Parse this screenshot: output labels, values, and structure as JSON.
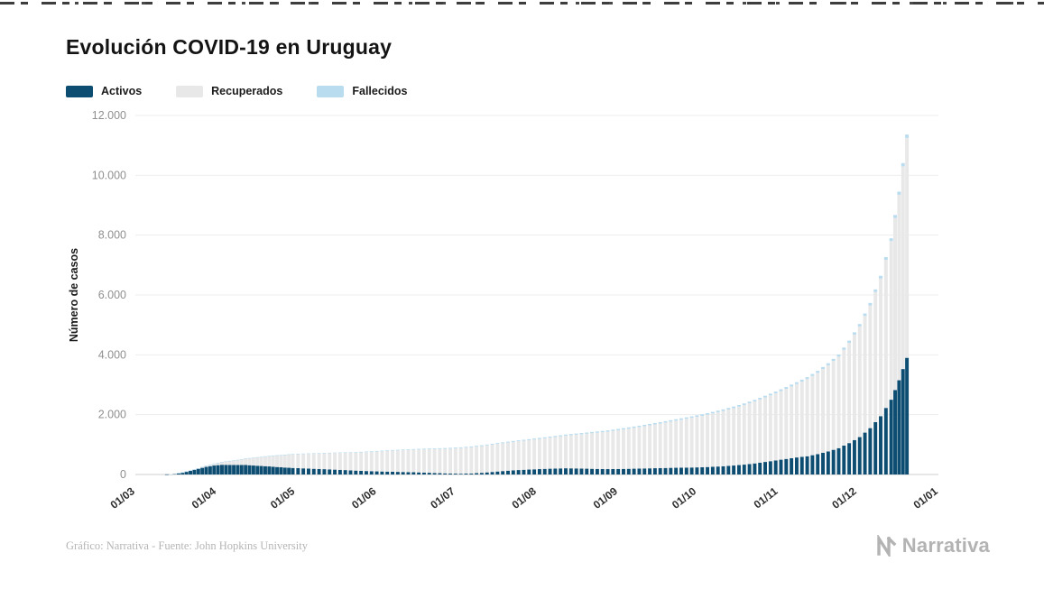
{
  "page": {
    "title": "Evolución COVID-19 en Uruguay",
    "footer_source": "Gráfico: Narrativa - Fuente: John Hopkins University",
    "brand": "Narrativa"
  },
  "chart_data": {
    "type": "bar",
    "stacked": true,
    "title": "Evolución COVID-19 en Uruguay",
    "xlabel": "",
    "ylabel": "Número de casos",
    "ylim": [
      0,
      12000
    ],
    "grid": true,
    "legend_position": "top-left",
    "yticks": [
      0,
      2000,
      4000,
      6000,
      8000,
      10000,
      12000
    ],
    "ytick_labels": [
      "0",
      "2.000",
      "4.000",
      "6.000",
      "8.000",
      "10.000",
      "12.000"
    ],
    "x_range": [
      "2020-03-01",
      "2021-01-01"
    ],
    "x_ticks": [
      {
        "date": "2020-03-01",
        "label": "01/03"
      },
      {
        "date": "2020-04-01",
        "label": "01/04"
      },
      {
        "date": "2020-05-01",
        "label": "01/05"
      },
      {
        "date": "2020-06-01",
        "label": "01/06"
      },
      {
        "date": "2020-07-01",
        "label": "01/07"
      },
      {
        "date": "2020-08-01",
        "label": "01/08"
      },
      {
        "date": "2020-09-01",
        "label": "01/09"
      },
      {
        "date": "2020-10-01",
        "label": "01/10"
      },
      {
        "date": "2020-11-01",
        "label": "01/11"
      },
      {
        "date": "2020-12-01",
        "label": "01/12"
      },
      {
        "date": "2021-01-01",
        "label": "01/01"
      }
    ],
    "x": [
      "2020-03-13",
      "2020-03-16",
      "2020-03-19",
      "2020-03-22",
      "2020-03-25",
      "2020-03-28",
      "2020-03-31",
      "2020-04-03",
      "2020-04-06",
      "2020-04-09",
      "2020-04-12",
      "2020-04-15",
      "2020-04-18",
      "2020-04-21",
      "2020-04-24",
      "2020-04-27",
      "2020-04-30",
      "2020-05-04",
      "2020-05-08",
      "2020-05-12",
      "2020-05-16",
      "2020-05-20",
      "2020-05-24",
      "2020-05-28",
      "2020-06-01",
      "2020-06-05",
      "2020-06-09",
      "2020-06-13",
      "2020-06-17",
      "2020-06-21",
      "2020-06-25",
      "2020-06-29",
      "2020-07-03",
      "2020-07-07",
      "2020-07-11",
      "2020-07-15",
      "2020-07-19",
      "2020-07-23",
      "2020-07-27",
      "2020-07-31",
      "2020-08-04",
      "2020-08-08",
      "2020-08-12",
      "2020-08-16",
      "2020-08-20",
      "2020-08-24",
      "2020-08-28",
      "2020-09-01",
      "2020-09-05",
      "2020-09-09",
      "2020-09-13",
      "2020-09-17",
      "2020-09-21",
      "2020-09-25",
      "2020-09-29",
      "2020-10-03",
      "2020-10-07",
      "2020-10-11",
      "2020-10-15",
      "2020-10-19",
      "2020-10-23",
      "2020-10-27",
      "2020-10-31",
      "2020-11-04",
      "2020-11-08",
      "2020-11-12",
      "2020-11-16",
      "2020-11-20",
      "2020-11-24",
      "2020-11-28",
      "2020-12-02",
      "2020-12-06",
      "2020-12-10",
      "2020-12-14",
      "2020-12-17",
      "2020-12-20"
    ],
    "series": [
      {
        "name": "Activos",
        "color": "#0e4d72",
        "values": [
          4,
          25,
          70,
          130,
          190,
          255,
          300,
          325,
          320,
          318,
          320,
          300,
          285,
          270,
          250,
          232,
          218,
          205,
          190,
          178,
          162,
          148,
          130,
          116,
          104,
          96,
          88,
          80,
          70,
          58,
          44,
          32,
          26,
          34,
          55,
          85,
          115,
          140,
          158,
          172,
          188,
          198,
          208,
          202,
          194,
          186,
          180,
          184,
          190,
          198,
          206,
          214,
          222,
          228,
          234,
          242,
          258,
          276,
          300,
          330,
          370,
          420,
          470,
          520,
          570,
          610,
          680,
          770,
          880,
          1050,
          1250,
          1550,
          1950,
          2500,
          3150,
          3900
        ]
      },
      {
        "name": "Recuperados",
        "color": "#e8e8e8",
        "values": [
          0,
          1,
          3,
          8,
          20,
          40,
          62,
          93,
          130,
          166,
          210,
          255,
          300,
          345,
          385,
          420,
          455,
          480,
          505,
          528,
          552,
          575,
          600,
          630,
          660,
          690,
          715,
          740,
          762,
          785,
          808,
          832,
          855,
          875,
          893,
          910,
          928,
          948,
          970,
          995,
          1022,
          1055,
          1090,
          1128,
          1168,
          1210,
          1252,
          1295,
          1340,
          1388,
          1438,
          1490,
          1545,
          1602,
          1660,
          1720,
          1782,
          1848,
          1918,
          1992,
          2070,
          2155,
          2245,
          2345,
          2455,
          2580,
          2720,
          2880,
          3060,
          3350,
          3700,
          4100,
          4600,
          5300,
          6200,
          7350
        ]
      },
      {
        "name": "Fallecidos",
        "color": "#b9dcef",
        "values": [
          0,
          0,
          1,
          1,
          1,
          1,
          1,
          4,
          6,
          7,
          7,
          8,
          9,
          10,
          10,
          12,
          14,
          15,
          16,
          17,
          18,
          19,
          20,
          21,
          22,
          23,
          23,
          24,
          24,
          25,
          26,
          27,
          28,
          29,
          29,
          30,
          31,
          32,
          33,
          34,
          35,
          36,
          37,
          38,
          40,
          41,
          42,
          44,
          45,
          45,
          46,
          47,
          47,
          48,
          49,
          50,
          51,
          52,
          53,
          53,
          54,
          56,
          57,
          58,
          60,
          62,
          65,
          68,
          71,
          74,
          78,
          83,
          89,
          95,
          103,
          112
        ]
      }
    ]
  }
}
